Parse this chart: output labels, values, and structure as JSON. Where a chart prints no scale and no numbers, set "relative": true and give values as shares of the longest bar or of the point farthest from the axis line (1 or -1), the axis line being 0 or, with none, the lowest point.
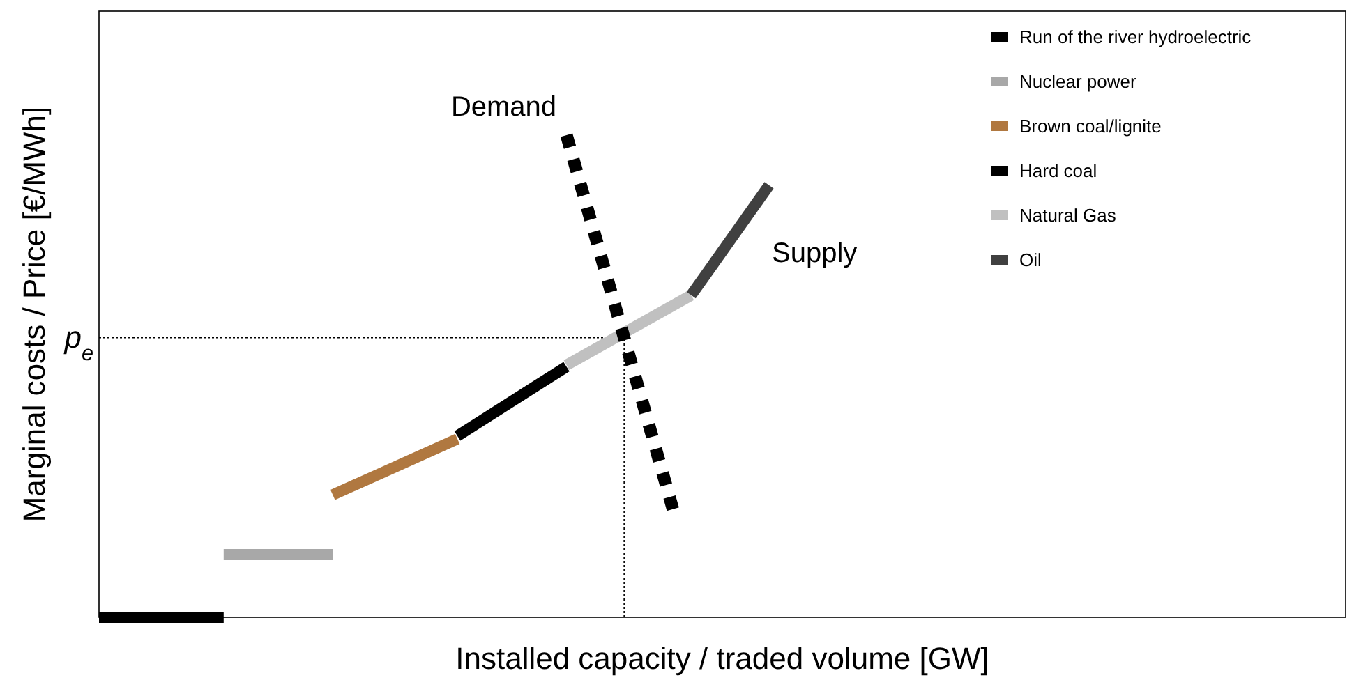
{
  "chart_data": {
    "type": "line",
    "relative": true,
    "xlabel": "Installed capacity / traded volume [GW]",
    "ylabel": "Marginal costs / Price [€/MWh]",
    "legend": "top right",
    "categories": [
      null,
      null,
      null,
      null,
      null,
      null,
      null,
      null,
      null,
      null,
      null,
      null,
      null,
      null,
      null,
      null,
      null,
      null,
      null,
      null,
      null,
      null,
      null,
      null,
      null,
      null,
      null,
      null,
      null,
      null,
      null,
      null,
      null,
      null,
      null,
      null,
      null,
      null,
      null,
      null,
      null,
      null,
      null,
      null,
      null,
      null,
      null,
      null,
      null,
      null,
      null,
      null,
      null,
      null,
      null,
      null,
      null,
      null,
      null,
      null,
      null,
      null,
      null,
      null,
      null,
      null,
      null,
      null,
      null,
      null,
      null,
      null,
      null,
      null,
      null,
      null,
      null,
      null,
      null,
      null,
      null
    ],
    "series": [
      {
        "name": "Run of the river hydroelectric",
        "color": "#000000",
        "values": [
          0,
          0,
          0,
          0,
          0,
          0,
          0,
          0,
          0,
          null,
          null,
          null,
          null,
          null,
          null,
          null,
          null,
          null,
          null,
          null,
          null,
          null,
          null,
          null,
          null,
          null,
          null,
          null,
          null,
          null,
          null,
          null,
          null,
          null,
          null,
          null,
          null,
          null,
          null,
          null,
          null,
          null,
          null,
          null,
          null,
          null,
          null,
          null,
          null,
          null,
          null,
          null,
          null,
          null,
          null,
          null,
          null,
          null,
          null,
          null,
          null,
          null,
          null,
          null,
          null,
          null,
          null,
          null,
          null,
          null,
          null,
          null,
          null,
          null,
          null,
          null,
          null,
          null,
          null,
          null,
          null
        ]
      },
      {
        "name": "Nuclear power",
        "color": "#a8a8a8",
        "values": [
          null,
          null,
          null,
          null,
          null,
          null,
          null,
          null,
          0.13,
          0.13,
          0.13,
          0.13,
          0.13,
          0.13,
          0.13,
          0.13,
          null,
          null,
          null,
          null,
          null,
          null,
          null,
          null,
          null,
          null,
          null,
          null,
          null,
          null,
          null,
          null,
          null,
          null,
          null,
          null,
          null,
          null,
          null,
          null,
          null,
          null,
          null,
          null,
          null,
          null,
          null,
          null,
          null,
          null,
          null,
          null,
          null,
          null,
          null,
          null,
          null,
          null,
          null,
          null,
          null,
          null,
          null,
          null,
          null,
          null,
          null,
          null,
          null,
          null,
          null,
          null,
          null,
          null,
          null,
          null,
          null,
          null,
          null,
          null,
          null
        ]
      },
      {
        "name": "Brown coal/lignite",
        "color": "#b07840",
        "values": [
          null,
          null,
          null,
          null,
          null,
          null,
          null,
          null,
          null,
          null,
          null,
          null,
          null,
          null,
          null,
          0.254,
          null,
          null,
          null,
          null,
          null,
          null,
          null,
          0.37,
          null,
          null,
          null,
          null,
          null,
          null,
          null,
          null,
          null,
          null,
          null,
          null,
          null,
          null,
          null,
          null,
          null,
          null,
          null,
          null,
          null,
          null,
          null,
          null,
          null,
          null,
          null,
          null,
          null,
          null,
          null,
          null,
          null,
          null,
          null,
          null,
          null,
          null,
          null,
          null,
          null,
          null,
          null,
          null,
          null,
          null,
          null,
          null,
          null,
          null,
          null,
          null,
          null,
          null,
          null,
          null,
          null
        ]
      },
      {
        "name": "Hard coal",
        "color": "#000000",
        "values": [
          null,
          null,
          null,
          null,
          null,
          null,
          null,
          null,
          null,
          null,
          null,
          null,
          null,
          null,
          null,
          null,
          null,
          null,
          null,
          null,
          null,
          null,
          null,
          0.376,
          null,
          null,
          null,
          null,
          null,
          null,
          0.52,
          null,
          null,
          null,
          null,
          null,
          null,
          null,
          null,
          null,
          null,
          null,
          null,
          null,
          null,
          null,
          null,
          null,
          null,
          null,
          null,
          null,
          null,
          null,
          null,
          null,
          null,
          null,
          null,
          null,
          null,
          null,
          null,
          null,
          null,
          null,
          null,
          null,
          null,
          null,
          null,
          null,
          null,
          null,
          null,
          null,
          null,
          null,
          null,
          null,
          null
        ]
      },
      {
        "name": "Natural Gas",
        "color": "#c0c0c0",
        "values": [
          null,
          null,
          null,
          null,
          null,
          null,
          null,
          null,
          null,
          null,
          null,
          null,
          null,
          null,
          null,
          null,
          null,
          null,
          null,
          null,
          null,
          null,
          null,
          null,
          null,
          null,
          null,
          null,
          null,
          null,
          0.523,
          null,
          null,
          null,
          null,
          null,
          null,
          null,
          0.668,
          null,
          null,
          null,
          null,
          null,
          null,
          null,
          null,
          null,
          null,
          null,
          null,
          null,
          null,
          null,
          null,
          null,
          null,
          null,
          null,
          null,
          null,
          null,
          null,
          null,
          null,
          null,
          null,
          null,
          null,
          null,
          null,
          null,
          null,
          null,
          null,
          null,
          null,
          null,
          null,
          null,
          null
        ]
      },
      {
        "name": "Oil",
        "color": "#404040",
        "values": [
          null,
          null,
          null,
          null,
          null,
          null,
          null,
          null,
          null,
          null,
          null,
          null,
          null,
          null,
          null,
          null,
          null,
          null,
          null,
          null,
          null,
          null,
          null,
          null,
          null,
          null,
          null,
          null,
          null,
          null,
          null,
          null,
          null,
          null,
          null,
          null,
          null,
          null,
          0.668,
          null,
          null,
          null,
          null,
          0.896,
          null,
          null,
          null,
          null,
          null,
          null,
          null,
          null,
          null,
          null,
          null,
          null,
          null,
          null,
          null,
          null,
          null,
          null,
          null,
          null,
          null,
          null,
          null,
          null,
          null,
          null,
          null,
          null,
          null,
          null,
          null,
          null,
          null,
          null,
          null,
          null,
          null
        ]
      },
      {
        "name": "Demand",
        "color": "#000000",
        "line_style": "dotted",
        "values": [
          null,
          null,
          null,
          null,
          null,
          null,
          null,
          null,
          null,
          null,
          null,
          null,
          null,
          null,
          null,
          null,
          null,
          null,
          null,
          null,
          null,
          null,
          null,
          null,
          null,
          null,
          null,
          null,
          null,
          null,
          1.0,
          null,
          null,
          null,
          null,
          null,
          null,
          0.205,
          null,
          null,
          null,
          null,
          null,
          null,
          null,
          null,
          null,
          null,
          null,
          null,
          null,
          null,
          null,
          null,
          null,
          null,
          null,
          null,
          null,
          null,
          null,
          null,
          null,
          null,
          null,
          null,
          null,
          null,
          null,
          null,
          null,
          null,
          null,
          null,
          null,
          null,
          null,
          null,
          null,
          null,
          null
        ]
      }
    ],
    "ref_lines": [
      {
        "axis": "y",
        "value": 0.58,
        "label": "p$_{e}$",
        "line_style": "dotted"
      }
    ],
    "annotations": [
      "Supply"
    ]
  }
}
